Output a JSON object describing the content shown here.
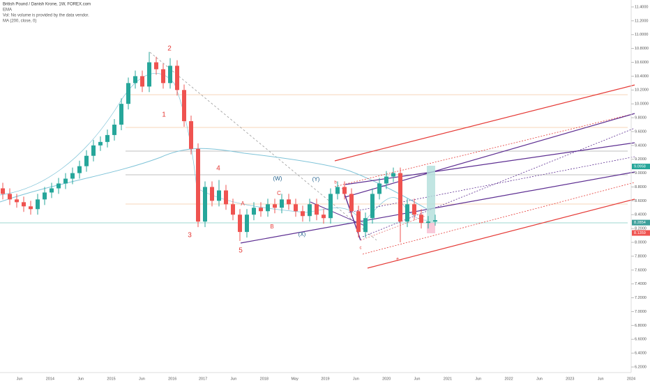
{
  "chart_data": {
    "type": "candlestick",
    "title": "British Pound / Danish Krone, 1W, FOREX.com",
    "legend_lines": [
      "EMA",
      "Vol: No volume is provided by the data vendor.",
      "MA (200, close, 0)"
    ],
    "up_color": "#26a69a",
    "down_color": "#ef5350",
    "opens": [
      8.78,
      8.7,
      8.62,
      8.58,
      8.52,
      8.48,
      8.62,
      8.72,
      8.78,
      8.85,
      8.92,
      9.0,
      9.1,
      9.25,
      9.4,
      9.45,
      9.55,
      9.7,
      10.0,
      10.3,
      10.4,
      10.25,
      10.6,
      10.5,
      10.3,
      10.55,
      10.2,
      9.75,
      9.35,
      8.3,
      8.8,
      8.6,
      8.75,
      8.55,
      8.4,
      8.15,
      8.4,
      8.5,
      8.45,
      8.55,
      8.5,
      8.62,
      8.55,
      8.45,
      8.38,
      8.55,
      8.4,
      8.35,
      8.7,
      8.8,
      8.7,
      8.45,
      8.15,
      8.35,
      8.7,
      8.85,
      8.95,
      9.0,
      8.3,
      8.55,
      8.4,
      8.28,
      8.3
    ],
    "highs": [
      8.86,
      8.78,
      8.7,
      8.66,
      8.6,
      8.7,
      8.8,
      8.86,
      8.93,
      9.0,
      9.08,
      9.18,
      9.33,
      9.48,
      9.53,
      9.63,
      9.78,
      10.08,
      10.38,
      10.48,
      10.48,
      10.75,
      10.68,
      10.58,
      10.66,
      10.63,
      10.28,
      9.83,
      9.43,
      8.88,
      8.88,
      8.9,
      8.83,
      8.63,
      8.48,
      8.48,
      8.58,
      8.58,
      8.63,
      8.63,
      8.7,
      8.7,
      8.63,
      8.53,
      8.63,
      8.63,
      8.48,
      8.78,
      8.88,
      8.88,
      8.78,
      8.53,
      8.43,
      8.78,
      8.93,
      9.03,
      9.08,
      9.08,
      8.63,
      8.63,
      8.48,
      8.38,
      8.4
    ],
    "lows": [
      8.62,
      8.54,
      8.5,
      8.44,
      8.4,
      8.4,
      8.54,
      8.64,
      8.7,
      8.77,
      8.84,
      8.92,
      9.02,
      9.17,
      9.32,
      9.37,
      9.47,
      9.62,
      9.92,
      10.22,
      10.17,
      10.17,
      10.42,
      10.22,
      10.22,
      10.12,
      9.67,
      9.27,
      8.22,
      8.22,
      8.52,
      8.52,
      8.47,
      8.32,
      8.02,
      8.07,
      8.32,
      8.37,
      8.37,
      8.42,
      8.42,
      8.47,
      8.37,
      8.3,
      8.3,
      8.32,
      8.27,
      8.27,
      8.62,
      8.62,
      8.37,
      8.07,
      8.07,
      8.27,
      8.62,
      8.77,
      8.87,
      8.0,
      8.22,
      8.32,
      8.2,
      8.2,
      8.24
    ],
    "closes": [
      8.7,
      8.62,
      8.58,
      8.52,
      8.48,
      8.62,
      8.72,
      8.78,
      8.85,
      8.92,
      9.0,
      9.1,
      9.25,
      9.4,
      9.45,
      9.55,
      9.7,
      10.0,
      10.3,
      10.4,
      10.25,
      10.6,
      10.5,
      10.3,
      10.55,
      10.2,
      9.75,
      9.35,
      8.3,
      8.8,
      8.6,
      8.75,
      8.55,
      8.4,
      8.15,
      8.4,
      8.5,
      8.45,
      8.55,
      8.5,
      8.62,
      8.55,
      8.45,
      8.38,
      8.55,
      8.4,
      8.35,
      8.7,
      8.8,
      8.7,
      8.45,
      8.15,
      8.35,
      8.7,
      8.85,
      8.95,
      9.0,
      8.3,
      8.55,
      8.4,
      8.28,
      8.3,
      8.32
    ],
    "ylim": [
      6.17,
      11.5
    ],
    "yticks": [
      {
        "value": 6.2,
        "label": "6.2000"
      },
      {
        "value": 6.4,
        "label": "6.4000"
      },
      {
        "value": 6.6,
        "label": "6.6000"
      },
      {
        "value": 6.8,
        "label": "6.8000"
      },
      {
        "value": 7.0,
        "label": "7.0000"
      },
      {
        "value": 7.2,
        "label": "7.2000"
      },
      {
        "value": 7.4,
        "label": "7.4000"
      },
      {
        "value": 7.6,
        "label": "7.6000"
      },
      {
        "value": 7.8,
        "label": "7.8000"
      },
      {
        "value": 8.0,
        "label": "8.0000"
      },
      {
        "value": 8.2,
        "label": "8.2000"
      },
      {
        "value": 8.4,
        "label": "8.4000"
      },
      {
        "value": 8.6,
        "label": "8.6000"
      },
      {
        "value": 8.8,
        "label": "8.8000"
      },
      {
        "value": 9.0,
        "label": "9.0000"
      },
      {
        "value": 9.2,
        "label": "9.2000"
      },
      {
        "value": 9.4,
        "label": "9.4000"
      },
      {
        "value": 9.6,
        "label": "9.6000"
      },
      {
        "value": 9.8,
        "label": "9.8000"
      },
      {
        "value": 10.0,
        "label": "10.0000"
      },
      {
        "value": 10.2,
        "label": "10.2000"
      },
      {
        "value": 10.4,
        "label": "10.4000"
      },
      {
        "value": 10.6,
        "label": "10.6000"
      },
      {
        "value": 10.8,
        "label": "10.8000"
      },
      {
        "value": 11.0,
        "label": "11.0000"
      },
      {
        "value": 11.2,
        "label": "11.2000"
      },
      {
        "value": 11.4,
        "label": "11.4000"
      }
    ],
    "xtick_labels": [
      "Jun",
      "2014",
      "Jun",
      "2015",
      "Jun",
      "2016",
      "2017",
      "Jun",
      "2018",
      "May",
      "2019",
      "Jun",
      "2020",
      "Jun",
      "2021",
      "Jun",
      "2022",
      "Jun",
      "2023",
      "Jun",
      "2024"
    ],
    "price_labels": [
      {
        "value": 9.0958,
        "label": "9.0958",
        "color": "#26a69a"
      },
      {
        "value": 8.2854,
        "label": "8.2854",
        "color": "#3d9f9a"
      },
      {
        "value": 8.1359,
        "label": "8.1359",
        "color": "#ef5350"
      }
    ],
    "annotations": [
      "2",
      "1",
      "3",
      "4",
      "5",
      "A",
      "B",
      "C",
      "(W)",
      "(X)",
      "(Y)",
      "b",
      "c",
      "e"
    ]
  }
}
